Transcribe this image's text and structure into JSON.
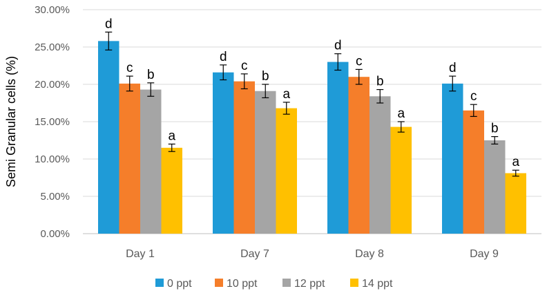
{
  "chart_data": {
    "type": "bar",
    "title": "",
    "xlabel": "",
    "ylabel": "Semi Granular cells (%)",
    "ylim": [
      0,
      30
    ],
    "yticks": [
      "0.00%",
      "5.00%",
      "10.00%",
      "15.00%",
      "20.00%",
      "25.00%",
      "30.00%"
    ],
    "ytick_values": [
      0,
      5,
      10,
      15,
      20,
      25,
      30
    ],
    "grid": true,
    "legend_position": "bottom",
    "categories": [
      "Day 1",
      "Day 7",
      "Day 8",
      "Day 9"
    ],
    "series": [
      {
        "name": "0 ppt",
        "color": "#1F9BD7",
        "values": [
          25.8,
          21.6,
          23.0,
          20.1
        ],
        "errors": [
          1.2,
          1.0,
          1.1,
          1.0
        ],
        "labels": [
          "d",
          "d",
          "d",
          "d"
        ]
      },
      {
        "name": "10 ppt",
        "color": "#F57E2A",
        "values": [
          20.1,
          20.4,
          21.0,
          16.5
        ],
        "errors": [
          1.0,
          1.0,
          1.0,
          0.8
        ],
        "labels": [
          "c",
          "c",
          "c",
          "c"
        ]
      },
      {
        "name": "12 ppt",
        "color": "#A5A5A5",
        "values": [
          19.3,
          19.1,
          18.4,
          12.5
        ],
        "errors": [
          0.9,
          0.9,
          0.9,
          0.5
        ],
        "labels": [
          "b",
          "b",
          "b",
          "b"
        ]
      },
      {
        "name": "14 ppt",
        "color": "#FFC000",
        "values": [
          11.5,
          16.8,
          14.3,
          8.1
        ],
        "errors": [
          0.5,
          0.8,
          0.7,
          0.4
        ],
        "labels": [
          "a",
          "a",
          "a",
          "a"
        ]
      }
    ]
  }
}
